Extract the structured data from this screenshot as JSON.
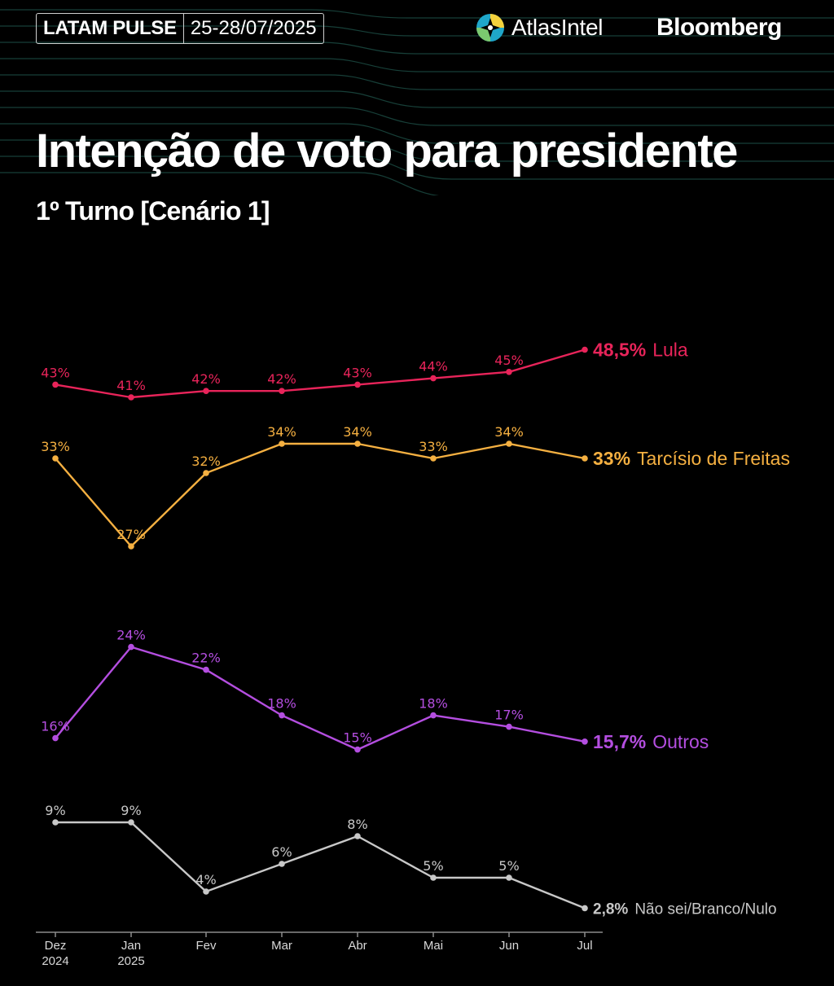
{
  "header": {
    "badge_left": "LATAM PULSE",
    "badge_right": "25-28/07/2025",
    "brand_atlas": "AtlasIntel",
    "brand_bloomberg": "Bloomberg"
  },
  "colors": {
    "lula": "#e8245a",
    "tarcisio": "#f5b041",
    "outros": "#b44ee0",
    "nao_sei": "#c8c8c8",
    "axis": "#8c8c8c",
    "bg_lines": "#1d4f46"
  },
  "chart_data": {
    "type": "line",
    "title": "Intenção de voto para presidente",
    "subtitle": "1º Turno [Cenário 1]",
    "categories": [
      "Dez\n2024",
      "Jan\n2025",
      "Fev",
      "Mar",
      "Abr",
      "Mai",
      "Jun",
      "Jul"
    ],
    "series": [
      {
        "key": "lula",
        "name": "Lula",
        "values": [
          43,
          41,
          42,
          42,
          43,
          44,
          45,
          48.5
        ],
        "labels": [
          "43%",
          "41%",
          "42%",
          "42%",
          "43%",
          "44%",
          "45%",
          "48,5%"
        ]
      },
      {
        "key": "tarcisio",
        "name": "Tarcísio de Freitas",
        "values": [
          33,
          27,
          32,
          34,
          34,
          33,
          34,
          33
        ],
        "labels": [
          "33%",
          "27%",
          "32%",
          "34%",
          "34%",
          "33%",
          "34%",
          "33%"
        ]
      },
      {
        "key": "outros",
        "name": "Outros",
        "values": [
          16,
          24,
          22,
          18,
          15,
          18,
          17,
          15.7
        ],
        "labels": [
          "16%",
          "24%",
          "22%",
          "18%",
          "15%",
          "18%",
          "17%",
          "15,7%"
        ]
      },
      {
        "key": "nao_sei",
        "name": "Não sei/Branco/Nulo",
        "values": [
          9,
          9,
          4,
          6,
          8,
          5,
          5,
          2.8
        ],
        "labels": [
          "9%",
          "9%",
          "4%",
          "6%",
          "8%",
          "5%",
          "5%",
          "2,8%"
        ]
      }
    ],
    "grid": false,
    "legend": "end-of-line labels"
  }
}
